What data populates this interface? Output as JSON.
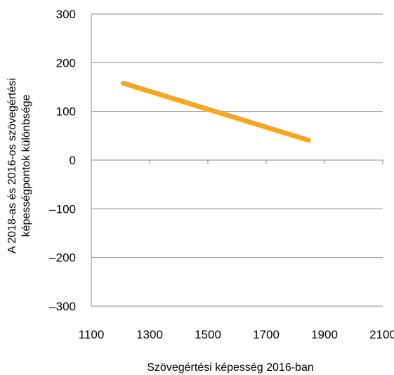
{
  "chart_data": {
    "type": "line",
    "xlabel": "Szövegértési képesség 2016-ban",
    "ylabel_lines": [
      "A 2018-as és 2016-os szövegértési",
      "képességpontok különbsége"
    ],
    "xlim": [
      1100,
      2100
    ],
    "ylim": [
      -300,
      300
    ],
    "x_ticks": [
      1100,
      1300,
      1500,
      1700,
      1900,
      2100
    ],
    "y_ticks": [
      300,
      200,
      100,
      0,
      -100,
      -200,
      -300
    ],
    "y_tick_labels": [
      "300",
      "200",
      "100",
      "0",
      "–100",
      "–200",
      "–300"
    ],
    "grid": "horizontal",
    "series": [
      {
        "color": "#f5a623",
        "x": [
          1210,
          1845
        ],
        "y": [
          158,
          41
        ]
      }
    ]
  }
}
